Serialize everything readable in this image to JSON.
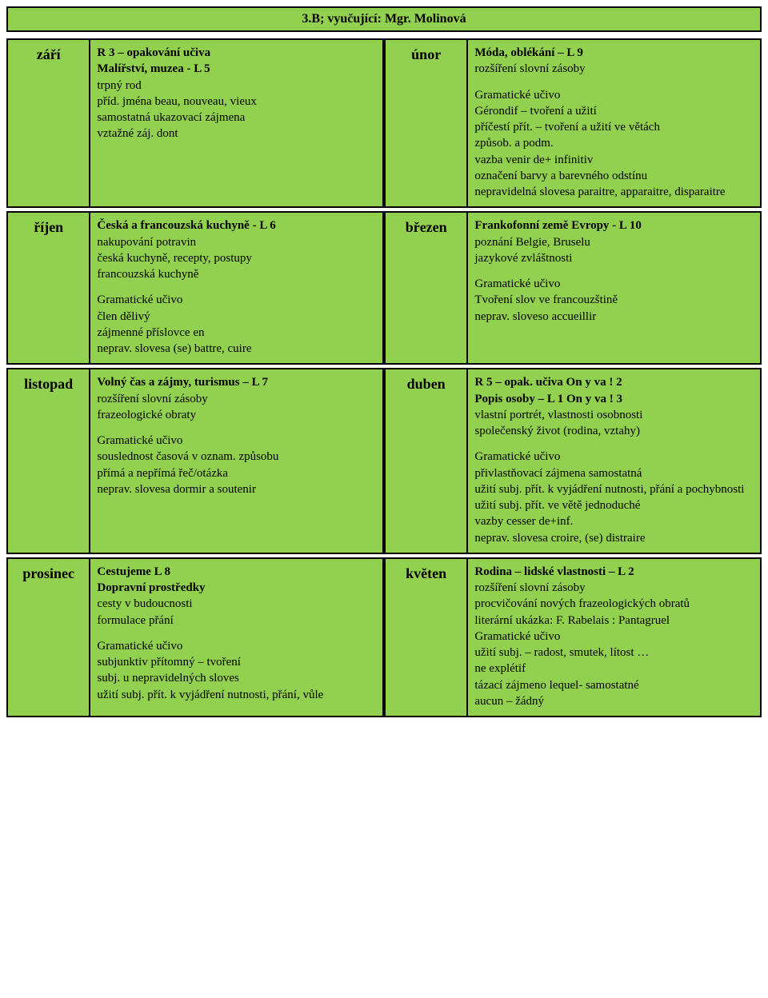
{
  "colors": {
    "cell_bg": "#92d050",
    "border": "#000000",
    "page_bg": "#ffffff"
  },
  "typography": {
    "family": "Times New Roman",
    "body_size_pt": 12,
    "header_size_pt": 13,
    "month_size_pt": 14
  },
  "header": "3.B; vyučující: Mgr. Molinová",
  "rows": [
    {
      "left_month": "září",
      "left_lines": [
        {
          "t": "R 3 – opakování učiva",
          "b": true
        },
        {
          "t": "Malířství, muzea - L 5",
          "b": true
        },
        {
          "t": "trpný rod"
        },
        {
          "t": "příd. jména beau, nouveau, vieux"
        },
        {
          "t": "samostatná ukazovací zájmena"
        },
        {
          "t": "vztažné záj. dont"
        }
      ],
      "right_month": "únor",
      "right_lines": [
        {
          "t": "Móda, oblékání – L 9",
          "b": true
        },
        {
          "t": "rozšíření slovní zásoby"
        },
        {
          "spacer": true
        },
        {
          "t": "Gramatické učivo"
        },
        {
          "t": "Gérondif – tvoření a užití"
        },
        {
          "t": "příčestí přít. – tvoření a užití  ve větách"
        },
        {
          "t": "způsob. a  podm."
        },
        {
          "t": "vazba venir de+ infinitiv"
        },
        {
          "t": "označení barvy a barevného odstínu"
        },
        {
          "t": "nepravidelná slovesa paraitre, apparaitre, disparaitre"
        }
      ]
    },
    {
      "left_month": "říjen",
      "left_lines": [
        {
          "t": "Česká a francouzská kuchyně -  L 6",
          "b": true
        },
        {
          "t": "nakupování potravin"
        },
        {
          "t": "česká kuchyně, recepty, postupy"
        },
        {
          "t": "francouzská kuchyně"
        },
        {
          "spacer": true
        },
        {
          "t": "Gramatické učivo"
        },
        {
          "t": "člen dělivý"
        },
        {
          "t": "zájmenné příslovce en"
        },
        {
          "t": "neprav. slovesa (se) battre, cuire"
        }
      ],
      "right_month": "březen",
      "right_lines": [
        {
          "t": "Frankofonní země Evropy  - L 10",
          "b": true
        },
        {
          "t": "poznání Belgie, Bruselu"
        },
        {
          "t": "jazykové zvláštnosti"
        },
        {
          "spacer": true
        },
        {
          "t": "Gramatické učivo"
        },
        {
          "t": "Tvoření slov ve francouzštině"
        },
        {
          "t": "neprav. sloveso  accueillir"
        }
      ]
    },
    {
      "left_month": "listopad",
      "left_lines": [
        {
          "t": "Volný čas a zájmy, turismus – L 7",
          "b": true
        },
        {
          "t": "rozšíření slovní zásoby"
        },
        {
          "t": "frazeologické obraty"
        },
        {
          "spacer": true
        },
        {
          "t": "Gramatické učivo"
        },
        {
          "t": "souslednost časová v oznam. způsobu"
        },
        {
          "t": "přímá a nepřímá řeč/otázka"
        },
        {
          "t": "neprav. slovesa dormir a soutenir"
        }
      ],
      "right_month": "duben",
      "right_lines": [
        {
          "t": "R 5 – opak. učiva On y va ! 2",
          "b": true
        },
        {
          "t": "Popis osoby – L 1 On y va ! 3",
          "b": true
        },
        {
          "t": "vlastní portrét, vlastnosti osobnosti"
        },
        {
          "t": "společenský život (rodina, vztahy)"
        },
        {
          "spacer": true
        },
        {
          "t": "Gramatické učivo"
        },
        {
          "t": "přivlastňovací zájmena samostatná"
        },
        {
          "t": "užití subj. přít. k vyjádření nutnosti, přání a pochybnosti"
        },
        {
          "t": "užití subj. přít. ve větě jednoduché"
        },
        {
          "t": "vazby cesser de+inf."
        },
        {
          "t": "neprav. slovesa croire, (se) distraire"
        }
      ]
    },
    {
      "left_month": "prosinec",
      "left_lines": [
        {
          "t": "Cestujeme L 8",
          "b": true
        },
        {
          "t": "Dopravní prostředky",
          "b": true
        },
        {
          "t": "cesty v budoucnosti"
        },
        {
          "t": "formulace přání"
        },
        {
          "spacer": true
        },
        {
          "t": "Gramatické učivo"
        },
        {
          "t": "subjunktiv přítomný – tvoření"
        },
        {
          "t": "subj. u nepravidelných sloves"
        },
        {
          "t": "užití subj. přít. k vyjádření nutnosti, přání, vůle"
        }
      ],
      "right_month": "květen",
      "right_lines": [
        {
          "t": "Rodina – lidské vlastnosti – L 2",
          "b": true
        },
        {
          "t": "rozšíření slovní zásoby"
        },
        {
          "t": "procvičování nových frazeologických obratů"
        },
        {
          "t": "literární ukázka: F. Rabelais : Pantagruel"
        },
        {
          "t": "Gramatické učivo"
        },
        {
          "t": "užití subj. – radost, smutek, lítost …"
        },
        {
          "t": "ne explétif"
        },
        {
          "t": "tázací zájmeno lequel- samostatné"
        },
        {
          "t": "aucun – žádný"
        }
      ]
    }
  ]
}
